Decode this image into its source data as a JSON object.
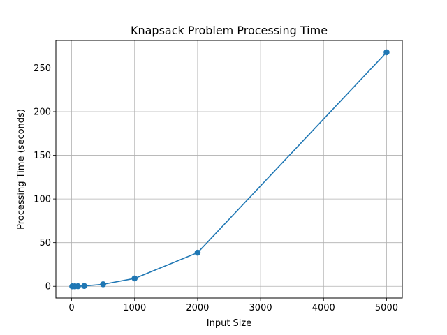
{
  "chart_data": {
    "type": "line",
    "title": "Knapsack Problem Processing Time",
    "xlabel": "Input Size",
    "ylabel": "Processing Time (seconds)",
    "xlim": [
      -250,
      5250
    ],
    "ylim": [
      -13.4,
      281.5
    ],
    "xticks": [
      0,
      1000,
      2000,
      3000,
      4000,
      5000
    ],
    "yticks": [
      0,
      50,
      100,
      150,
      200,
      250
    ],
    "grid": true,
    "legend": "none",
    "series": [
      {
        "color": "#1f77b4",
        "marker": "circle",
        "x": [
          10,
          50,
          100,
          200,
          500,
          1000,
          2000,
          5000
        ],
        "y": [
          0.0,
          0.05,
          0.1,
          0.4,
          2.3,
          9.0,
          38.5,
          268.0
        ]
      }
    ]
  }
}
